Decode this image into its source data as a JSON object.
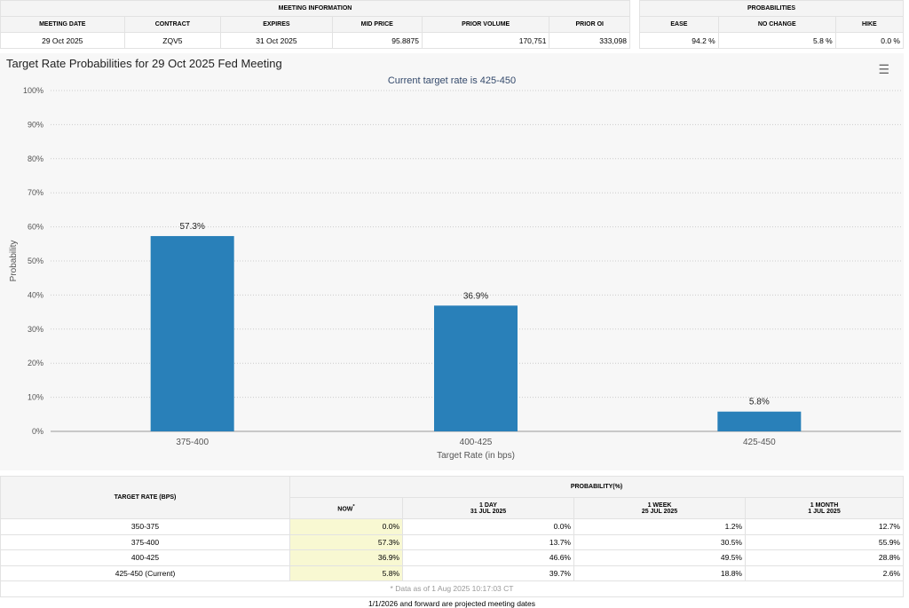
{
  "meeting_info": {
    "header": "MEETING INFORMATION",
    "columns": [
      "MEETING DATE",
      "CONTRACT",
      "EXPIRES",
      "MID PRICE",
      "PRIOR VOLUME",
      "PRIOR OI"
    ],
    "values": [
      "29 Oct 2025",
      "ZQV5",
      "31 Oct 2025",
      "95.8875",
      "170,751",
      "333,098"
    ]
  },
  "probabilities": {
    "header": "PROBABILITIES",
    "columns": [
      "EASE",
      "NO CHANGE",
      "HIKE"
    ],
    "values": [
      "94.2 %",
      "5.8 %",
      "0.0 %"
    ]
  },
  "chart_header": {
    "title": "Target Rate Probabilities for 29 Oct 2025 Fed Meeting",
    "menu_icon": "hamburger-menu-icon"
  },
  "chart_data": {
    "type": "bar",
    "title": "Current target rate is 425-450",
    "categories": [
      "375-400",
      "400-425",
      "425-450"
    ],
    "values": [
      57.3,
      36.9,
      5.8
    ],
    "data_labels": [
      "57.3%",
      "36.9%",
      "5.8%"
    ],
    "xlabel": "Target Rate (in bps)",
    "ylabel": "Probability",
    "ylim": [
      0,
      100
    ],
    "yticks": [
      "0%",
      "10%",
      "20%",
      "30%",
      "40%",
      "50%",
      "60%",
      "70%",
      "80%",
      "90%",
      "100%"
    ],
    "color": "#2980b9",
    "grid": true
  },
  "prob_table": {
    "col_target": "TARGET RATE (BPS)",
    "col_prob": "PROBABILITY(%)",
    "sub": [
      {
        "l1": "NOW",
        "l2": "*"
      },
      {
        "l1": "1 DAY",
        "l2": "31 JUL 2025"
      },
      {
        "l1": "1 WEEK",
        "l2": "25 JUL 2025"
      },
      {
        "l1": "1 MONTH",
        "l2": "1 JUL 2025"
      }
    ],
    "rows": [
      [
        "350-375",
        "0.0%",
        "0.0%",
        "1.2%",
        "12.7%"
      ],
      [
        "375-400",
        "57.3%",
        "13.7%",
        "30.5%",
        "55.9%"
      ],
      [
        "400-425",
        "36.9%",
        "46.6%",
        "49.5%",
        "28.8%"
      ],
      [
        "425-450 (Current)",
        "5.8%",
        "39.7%",
        "18.8%",
        "2.6%"
      ]
    ],
    "note": "* Data as of 1 Aug 2025 10:17:03 CT"
  },
  "footer": "1/1/2026 and forward are projected meeting dates"
}
